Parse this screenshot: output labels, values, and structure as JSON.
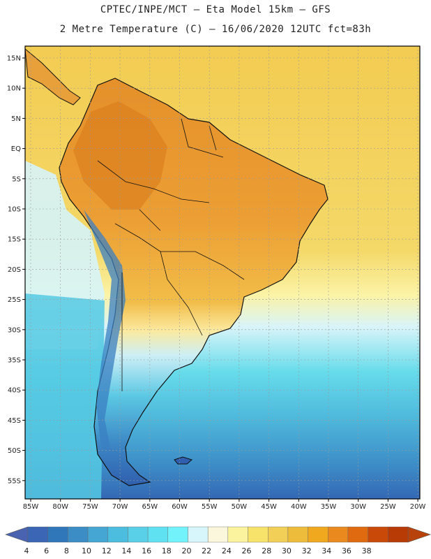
{
  "header": {
    "line1": "CPTEC/INPE/MCT –  Eta Model 15km – GFS",
    "line2": "2 Metre Temperature (C) – 16/06/2020 12UTC fct=83h"
  },
  "map": {
    "lat_labels": [
      "15N",
      "10N",
      "5N",
      "EQ",
      "5S",
      "10S",
      "15S",
      "20S",
      "25S",
      "30S",
      "35S",
      "40S",
      "45S",
      "50S",
      "55S"
    ],
    "lon_labels": [
      "85W",
      "80W",
      "75W",
      "70W",
      "65W",
      "60W",
      "55W",
      "50W",
      "45W",
      "40W",
      "35W",
      "30W",
      "25W",
      "20W"
    ],
    "grid_lines": true,
    "colors": {
      "ocean_warm": "#f4cf5c",
      "ocean_cool": "#d9f6fb",
      "land_hot": "#e89a2b",
      "coast": "#111111"
    }
  },
  "colorbar": {
    "ticks": [
      "4",
      "6",
      "8",
      "10",
      "12",
      "14",
      "16",
      "18",
      "20",
      "22",
      "24",
      "26",
      "28",
      "30",
      "32",
      "34",
      "36",
      "38"
    ],
    "colors": [
      "#3a66b5",
      "#2f77b9",
      "#3c8dc5",
      "#45a6d4",
      "#4cbddf",
      "#59d0e8",
      "#60e1f1",
      "#72f3fb",
      "#d6f6fb",
      "#fbf7dd",
      "#fbf39d",
      "#f7e26a",
      "#f2cf56",
      "#edbc3a",
      "#f0a81e",
      "#ea8a1e",
      "#e06a10",
      "#c94a08",
      "#b83a05"
    ],
    "left_arrow_color": "#4a63b0",
    "right_arrow_color": "#b8420c"
  }
}
